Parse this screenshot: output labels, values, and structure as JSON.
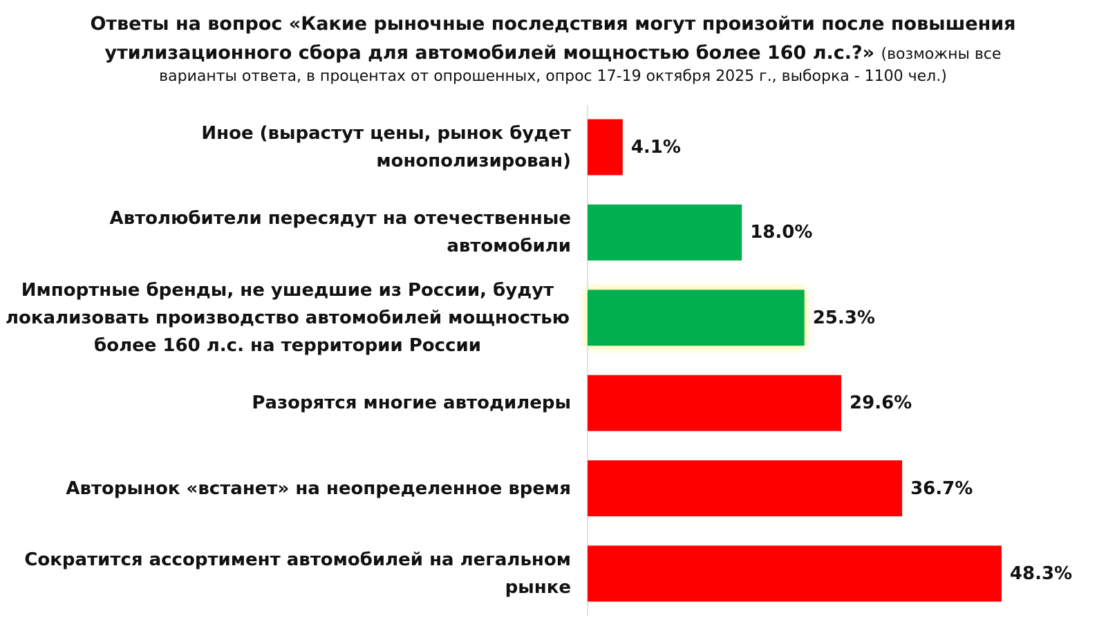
{
  "chart_data": {
    "type": "bar",
    "orientation": "horizontal",
    "title": "Ответы на вопрос «Какие рыночные последствия могут произойти после повышения утилизационного сбора для автомобилей мощностью более 160 л.с.?»",
    "title_note": "(возможны все",
    "subtitle": "варианты ответа, в процентах от опрошенных, опрос 17-19 октября 2025 г., выборка - 1100 чел.)",
    "categories": [
      "Иное (вырастут цены, рынок будет монополизирован)",
      "Автолюбители пересядут на отечественные автомобили",
      "Импортные бренды, не ушедшие из России, будут локализовать производство автомобилей мощностью более 160 л.с. на территории России",
      "Разорятся многие автодилеры",
      "Авторынок «встанет» на неопределенное время",
      "Сократится ассортимент автомобилей на легальном рынке"
    ],
    "values": [
      4.1,
      18.0,
      25.3,
      29.6,
      36.7,
      48.3
    ],
    "value_labels": [
      "4.1%",
      "18.0%",
      "25.3%",
      "29.6%",
      "36.7%",
      "48.3%"
    ],
    "bar_colors": [
      "#ff0000",
      "#00b050",
      "#00b050",
      "#ff0000",
      "#ff0000",
      "#ff0000"
    ],
    "highlight": [
      false,
      false,
      true,
      false,
      false,
      false
    ],
    "xlim": [
      0,
      50
    ],
    "grid": false,
    "legend": "none"
  }
}
